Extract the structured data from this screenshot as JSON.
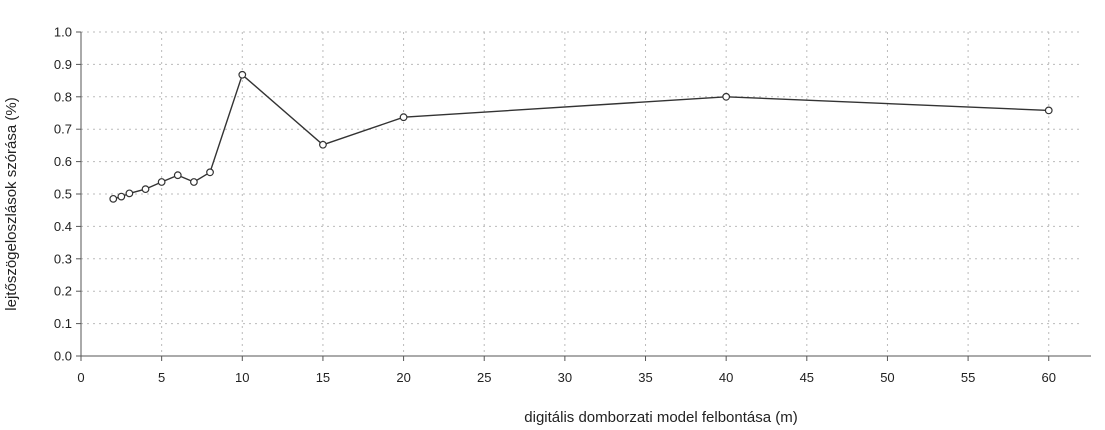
{
  "chart_data": {
    "type": "line",
    "title": "",
    "xlabel": "digitális domborzati model felbontása (m)",
    "ylabel": "lejtőszögeloszlások szórása (%)",
    "xlim": [
      0,
      62
    ],
    "ylim": [
      0,
      1.0
    ],
    "x_ticks": [
      0,
      5,
      10,
      15,
      20,
      25,
      30,
      35,
      40,
      45,
      50,
      55,
      60
    ],
    "y_ticks": [
      0.0,
      0.1,
      0.2,
      0.3,
      0.4,
      0.5,
      0.6,
      0.7,
      0.8,
      0.9,
      1.0
    ],
    "x_tick_labels": [
      "0",
      "5",
      "10",
      "15",
      "20",
      "25",
      "30",
      "35",
      "40",
      "45",
      "50",
      "55",
      "60"
    ],
    "y_tick_labels": [
      "0.0",
      "0.1",
      "0.2",
      "0.3",
      "0.4",
      "0.5",
      "0.6",
      "0.7",
      "0.8",
      "0.9",
      "1.0"
    ],
    "grid": true,
    "series": [
      {
        "x": [
          2,
          2.5,
          3,
          4,
          5,
          6,
          7,
          8,
          10,
          15,
          20,
          40,
          60
        ],
        "y": [
          0.485,
          0.492,
          0.502,
          0.515,
          0.537,
          0.558,
          0.537,
          0.567,
          0.868,
          0.652,
          0.737,
          0.8,
          0.758
        ]
      }
    ],
    "colors": {
      "line": "#333333",
      "marker_fill": "#ffffff",
      "grid": "#bbbbbb",
      "axis": "#555555"
    }
  }
}
